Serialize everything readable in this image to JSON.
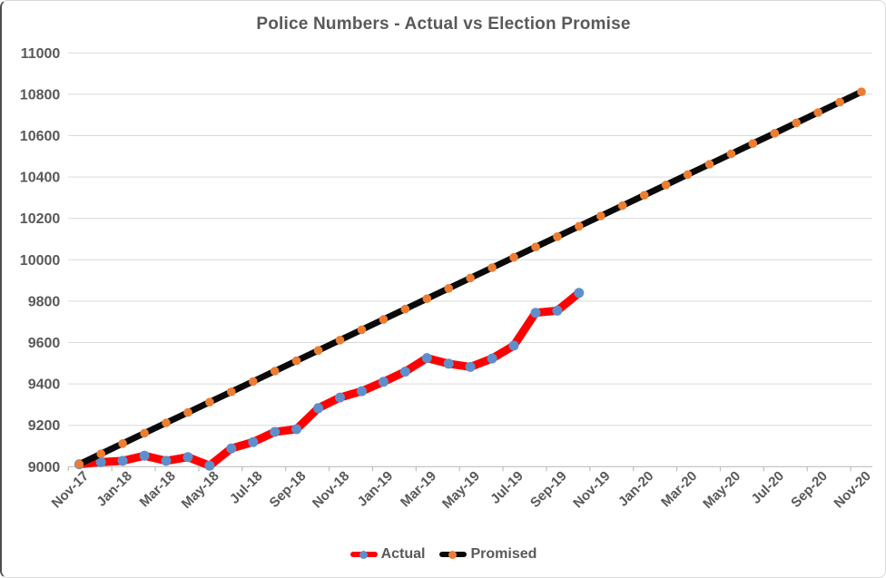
{
  "title": "Police Numbers - Actual vs Election Promise",
  "legend": [
    {
      "label": "Actual",
      "line_color": "#ff0000",
      "marker_color": "#5e8fcb"
    },
    {
      "label": "Promised",
      "line_color": "#0a0a0a",
      "marker_color": "#ed7d31"
    }
  ],
  "chart_data": {
    "type": "line",
    "title": "Police Numbers - Actual vs Election Promise",
    "xlabel": "",
    "ylabel": "",
    "ylim": [
      9000,
      11000
    ],
    "ytick_step": 200,
    "y_tick_labels": [
      "9000",
      "9200",
      "9400",
      "9600",
      "9800",
      "10000",
      "10200",
      "10400",
      "10600",
      "10800",
      "11000"
    ],
    "grid": true,
    "legend_position": "bottom",
    "x_label_every": 2,
    "x_categories": [
      "Nov-17",
      "Dec-17",
      "Jan-18",
      "Feb-18",
      "Mar-18",
      "Apr-18",
      "May-18",
      "Jun-18",
      "Jul-18",
      "Aug-18",
      "Sep-18",
      "Oct-18",
      "Nov-18",
      "Dec-18",
      "Jan-19",
      "Feb-19",
      "Mar-19",
      "Apr-19",
      "May-19",
      "Jun-19",
      "Jul-19",
      "Aug-19",
      "Sep-19",
      "Oct-19",
      "Nov-19",
      "Dec-19",
      "Jan-20",
      "Feb-20",
      "Mar-20",
      "Apr-20",
      "May-20",
      "Jun-20",
      "Jul-20",
      "Aug-20",
      "Sep-20",
      "Oct-20",
      "Nov-20"
    ],
    "x_tick_labels_shown": [
      "Nov-17",
      "Jan-18",
      "Mar-18",
      "May-18",
      "Jul-18",
      "Sep-18",
      "Nov-18",
      "Jan-19",
      "Mar-19",
      "May-19",
      "Jul-19",
      "Sep-19",
      "Nov-19",
      "Jan-20",
      "Mar-20",
      "May-20",
      "Jul-20",
      "Sep-20",
      "Nov-20"
    ],
    "series": [
      {
        "name": "Actual",
        "color": "#ff0000",
        "marker_color": "#5e8fcb",
        "values": [
          9012,
          9022,
          9028,
          9053,
          9028,
          9046,
          9005,
          9088,
          9119,
          9168,
          9181,
          9283,
          9334,
          9365,
          9410,
          9459,
          9525,
          9498,
          9482,
          9523,
          9585,
          9744,
          9754,
          9840,
          null,
          null,
          null,
          null,
          null,
          null,
          null,
          null,
          null,
          null,
          null,
          null,
          null
        ]
      },
      {
        "name": "Promised",
        "color": "#0a0a0a",
        "marker_color": "#ed7d31",
        "values": [
          9012,
          9062,
          9112,
          9162,
          9212,
          9262,
          9312,
          9362,
          9412,
          9462,
          9512,
          9562,
          9612,
          9662,
          9712,
          9762,
          9812,
          9862,
          9912,
          9962,
          10012,
          10062,
          10112,
          10162,
          10212,
          10262,
          10312,
          10362,
          10412,
          10462,
          10512,
          10562,
          10612,
          10662,
          10712,
          10762,
          10812
        ]
      }
    ],
    "colors": {
      "grid_color": "#d9d9d9",
      "axis_color": "#bfbfbf",
      "text_color": "#595959",
      "background": "#ffffff"
    }
  }
}
